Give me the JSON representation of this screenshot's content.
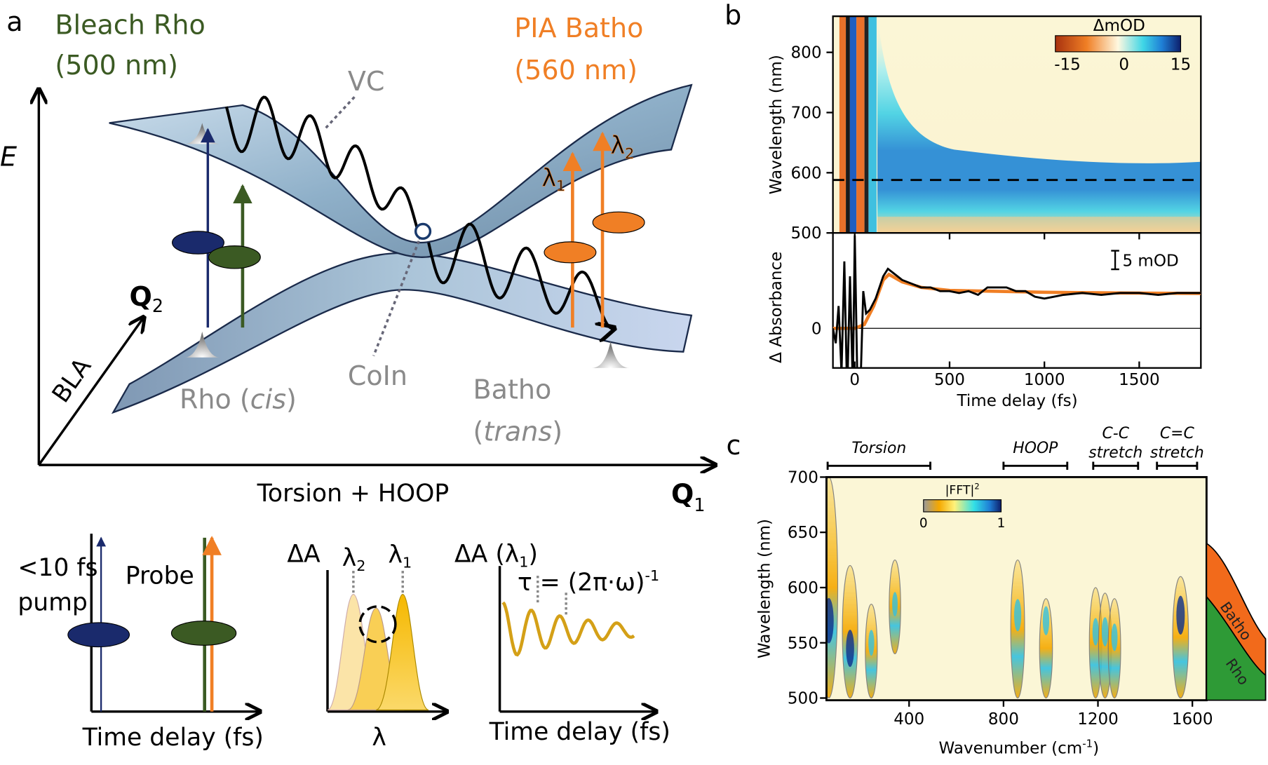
{
  "panel_a": {
    "panel_label": "a",
    "bleach_title": "Bleach Rho",
    "bleach_wavelength": "(500 nm)",
    "pia_title": "PIA Batho",
    "pia_wavelength": "(560 nm)",
    "vc_label": "VC",
    "energy_axis": "E",
    "q2_label": "Q",
    "q2_sub": "2",
    "bla_label": "BLA",
    "coin_label": "CoIn",
    "rho_label": "Rho (",
    "rho_italic": "cis",
    "rho_close": ")",
    "batho_label": "Batho",
    "batho_open": "(",
    "batho_italic": "trans",
    "batho_close": ")",
    "x_axis_label": "Torsion + HOOP",
    "q1_label": "Q",
    "q1_sub": "1",
    "lambda1": "λ",
    "lambda1_sub": "1",
    "lambda2": "λ",
    "lambda2_sub": "2",
    "colors": {
      "bleach": "#3b5a23",
      "pia": "#f07f25",
      "pump": "#1a2a6c",
      "surface": "#a9c3d9",
      "annotation": "#8a8a8a"
    }
  },
  "insets": {
    "pump_label_1": "<10 fs",
    "pump_label_2": "pump",
    "probe_label": "Probe",
    "inset1_xlabel": "Time delay (fs)",
    "inset2_ylabel": "ΔA",
    "inset2_lambda2": "λ",
    "inset2_lambda2_sub": "2",
    "inset2_lambda1": "λ",
    "inset2_lambda1_sub": "1",
    "inset2_xlabel": "λ",
    "inset3_ylabel": "ΔA (λ",
    "inset3_ylabel_sub": "1",
    "inset3_ylabel_close": ")",
    "tau_formula": "τ = (2π·ω)",
    "tau_exponent": "-1",
    "inset3_xlabel": "Time delay (fs)",
    "colors": {
      "spectrum": "#f5b800",
      "oscillation": "#d4a017"
    }
  },
  "chart_data": [
    {
      "panel_label": "b",
      "type": "heatmap",
      "xlabel": "Time delay (fs)",
      "ylabel": "Wavelength (nm)",
      "xlim": [
        -115,
        1825
      ],
      "ylim": [
        500,
        860
      ],
      "xticks": [
        0,
        500,
        1000,
        1500
      ],
      "yticks": [
        500,
        600,
        700,
        800
      ],
      "colorbar": {
        "title": "ΔmOD",
        "min": -15,
        "max": 15,
        "ticks": [
          "-15",
          "0",
          "15"
        ],
        "colors": [
          "#a8320f",
          "#f07f25",
          "#fff8e0",
          "#3fd6e6",
          "#1f7fd6",
          "#0d1f6b"
        ]
      },
      "dashed_line_wavelength": 588,
      "features": [
        {
          "kind": "coherent artifact",
          "x_range": [
            -80,
            60
          ],
          "sign": "mixed"
        },
        {
          "kind": "positive band",
          "wavelength_range": [
            545,
            610
          ],
          "x_start": 150,
          "peak": 15
        },
        {
          "kind": "negative band",
          "wavelength_range": [
            500,
            530
          ],
          "x_start": 60,
          "peak": -8
        }
      ]
    },
    {
      "type": "line",
      "xlabel": "Time delay (fs)",
      "ylabel": "Δ Absorbance",
      "xlim": [
        -115,
        1825
      ],
      "ylim": [
        -16,
        26
      ],
      "xticks": [
        0,
        500,
        1000,
        1500
      ],
      "yticks": [
        0
      ],
      "scale_bar": "5 mOD",
      "series": [
        {
          "color": "#000000",
          "points": [
            [
              -115,
              0
            ],
            [
              -100,
              -4
            ],
            [
              -85,
              6
            ],
            [
              -70,
              -12
            ],
            [
              -55,
              18
            ],
            [
              -40,
              -18
            ],
            [
              -25,
              14
            ],
            [
              -10,
              -16
            ],
            [
              0,
              25
            ],
            [
              15,
              -18
            ],
            [
              30,
              -16
            ],
            [
              45,
              10
            ],
            [
              60,
              4
            ],
            [
              80,
              5
            ],
            [
              110,
              8
            ],
            [
              150,
              14
            ],
            [
              175,
              16
            ],
            [
              200,
              15
            ],
            [
              250,
              13
            ],
            [
              300,
              12
            ],
            [
              350,
              11
            ],
            [
              400,
              11
            ],
            [
              450,
              10
            ],
            [
              500,
              10
            ],
            [
              550,
              9.5
            ],
            [
              600,
              10
            ],
            [
              650,
              9
            ],
            [
              700,
              11
            ],
            [
              750,
              11
            ],
            [
              800,
              11
            ],
            [
              850,
              10
            ],
            [
              900,
              10
            ],
            [
              950,
              8.5
            ],
            [
              1000,
              8
            ],
            [
              1050,
              8.5
            ],
            [
              1100,
              9
            ],
            [
              1200,
              9.5
            ],
            [
              1300,
              9
            ],
            [
              1400,
              9.5
            ],
            [
              1500,
              9.5
            ],
            [
              1600,
              9
            ],
            [
              1700,
              9.5
            ],
            [
              1825,
              9.5
            ]
          ]
        },
        {
          "color": "#f07f25",
          "points": [
            [
              -115,
              0
            ],
            [
              0,
              0
            ],
            [
              50,
              1
            ],
            [
              100,
              6
            ],
            [
              150,
              13
            ],
            [
              180,
              14.5
            ],
            [
              250,
              12.5
            ],
            [
              350,
              11
            ],
            [
              500,
              10.2
            ],
            [
              700,
              10
            ],
            [
              1000,
              9.7
            ],
            [
              1400,
              9.5
            ],
            [
              1825,
              9.4
            ]
          ]
        }
      ]
    },
    {
      "panel_label": "c",
      "type": "heatmap",
      "xlabel": "Wavenumber (cm",
      "xlabel_sup": "-1",
      "xlabel_close": ")",
      "ylabel": "Wavelength (nm)",
      "xlim": [
        50,
        1660
      ],
      "ylim": [
        498,
        700
      ],
      "xticks": [
        400,
        800,
        1200,
        1600
      ],
      "yticks": [
        500,
        550,
        600,
        650,
        700
      ],
      "colorbar": {
        "title": "|FFT|",
        "title_sup": "2",
        "min": 0,
        "max": 1,
        "ticks": [
          "0",
          "1"
        ],
        "colors": [
          "#9a9a9a",
          "#f5a800",
          "#fff27a",
          "#33e0e6",
          "#1f7fd6",
          "#0d1f6b"
        ]
      },
      "mode_groups": [
        {
          "label": "Torsion",
          "range": [
            55,
            490
          ]
        },
        {
          "label": "HOOP",
          "range": [
            800,
            1070
          ]
        },
        {
          "label": "C-C",
          "label2": "stretch",
          "range": [
            1180,
            1370
          ]
        },
        {
          "label": "C=C",
          "label2": "stretch",
          "range": [
            1450,
            1620
          ]
        }
      ],
      "peaks": [
        {
          "wavenumber": 60,
          "wavelength_range": [
            500,
            700
          ],
          "max_wavelength": 570,
          "intensity": 1.0
        },
        {
          "wavenumber": 150,
          "wavelength_range": [
            500,
            620
          ],
          "max_wavelength": 545,
          "intensity": 0.75
        },
        {
          "wavenumber": 240,
          "wavelength_range": [
            500,
            585
          ],
          "max_wavelength": 550,
          "intensity": 0.4
        },
        {
          "wavenumber": 340,
          "wavelength_range": [
            540,
            625
          ],
          "max_wavelength": 585,
          "intensity": 0.35
        },
        {
          "wavenumber": 860,
          "wavelength_range": [
            500,
            625
          ],
          "max_wavelength": 575,
          "intensity": 0.6
        },
        {
          "wavenumber": 980,
          "wavelength_range": [
            500,
            590
          ],
          "max_wavelength": 570,
          "intensity": 0.5
        },
        {
          "wavenumber": 1190,
          "wavelength_range": [
            500,
            600
          ],
          "max_wavelength": 560,
          "intensity": 0.45
        },
        {
          "wavenumber": 1230,
          "wavelength_range": [
            500,
            595
          ],
          "max_wavelength": 560,
          "intensity": 0.5
        },
        {
          "wavenumber": 1270,
          "wavelength_range": [
            500,
            590
          ],
          "max_wavelength": 555,
          "intensity": 0.45
        },
        {
          "wavenumber": 1550,
          "wavelength_range": [
            500,
            610
          ],
          "max_wavelength": 575,
          "intensity": 0.8
        }
      ],
      "side_spectra": [
        {
          "name": "Batho",
          "color": "#f26a1b"
        },
        {
          "name": "Rho",
          "color": "#2e9a36"
        }
      ]
    }
  ]
}
